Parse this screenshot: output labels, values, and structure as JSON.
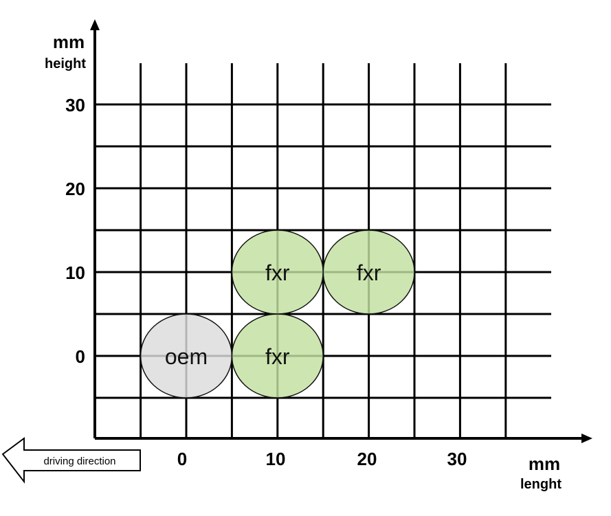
{
  "chart_data": {
    "type": "scatter",
    "x_axis": {
      "unit": "mm",
      "label": "lenght",
      "ticks": [
        0,
        10,
        20,
        30
      ],
      "range": [
        -10,
        40
      ],
      "grid_step": 5
    },
    "y_axis": {
      "unit": "mm",
      "label": "height",
      "ticks": [
        0,
        10,
        20,
        30
      ],
      "range": [
        -10,
        35
      ],
      "grid_step": 5
    },
    "grid": true,
    "points": [
      {
        "label": "oem",
        "x": 0,
        "y": 0,
        "diameter": 10,
        "color": "#dcdcdc"
      },
      {
        "label": "fxr",
        "x": 10,
        "y": 0,
        "diameter": 10,
        "color": "#c2e0a0"
      },
      {
        "label": "fxr",
        "x": 10,
        "y": 10,
        "diameter": 10,
        "color": "#c2e0a0"
      },
      {
        "label": "fxr",
        "x": 20,
        "y": 10,
        "diameter": 10,
        "color": "#c2e0a0"
      }
    ],
    "annotation": "driving direction"
  }
}
